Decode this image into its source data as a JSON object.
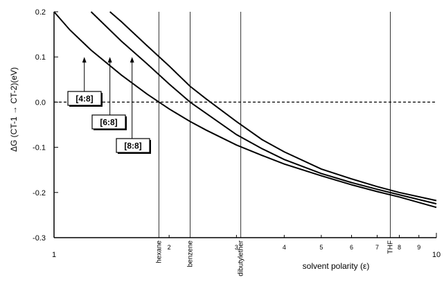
{
  "chart_data": {
    "type": "line",
    "xlabel": "solvent polarity (ε)",
    "ylabel": "ΔG (CT-1 → CT-2)(eV)",
    "xscale": "log",
    "xlim": [
      1,
      10
    ],
    "ylim": [
      -0.3,
      0.2
    ],
    "y_ticks": [
      "-0.3",
      "-0.2",
      "-0.1",
      "0.0",
      "0.1",
      "0.2"
    ],
    "x_major_ticks": [
      "1",
      "10"
    ],
    "x_minor_ticks": [
      "2",
      "3",
      "4",
      "5",
      "6",
      "7",
      "8",
      "9"
    ],
    "zero_line": "dashed",
    "reference_lines": [
      {
        "label": "hexane",
        "x": 1.88
      },
      {
        "label": "benzene",
        "x": 2.27
      },
      {
        "label": "dibutylether",
        "x": 3.08
      },
      {
        "label": "THF",
        "x": 7.58
      }
    ],
    "series": [
      {
        "name": "[4:8]",
        "x": [
          1.0,
          1.1,
          1.25,
          1.5,
          1.75,
          2.0,
          2.27,
          2.5,
          3.0,
          3.5,
          4.0,
          5.0,
          6.0,
          7.0,
          8.0,
          10.0
        ],
        "y": [
          0.2,
          0.16,
          0.115,
          0.06,
          0.018,
          -0.015,
          -0.043,
          -0.062,
          -0.095,
          -0.118,
          -0.137,
          -0.163,
          -0.183,
          -0.198,
          -0.21,
          -0.233
        ]
      },
      {
        "name": "[6:8]",
        "x": [
          1.25,
          1.5,
          1.75,
          2.0,
          2.27,
          2.5,
          3.0,
          3.5,
          4.0,
          5.0,
          6.0,
          7.0,
          8.0,
          10.0
        ],
        "y": [
          0.2,
          0.135,
          0.085,
          0.04,
          0.0,
          -0.025,
          -0.072,
          -0.103,
          -0.127,
          -0.158,
          -0.178,
          -0.193,
          -0.205,
          -0.225
        ]
      },
      {
        "name": "[8:8]",
        "x": [
          1.4,
          1.5,
          1.75,
          2.0,
          2.27,
          2.5,
          3.0,
          3.5,
          4.0,
          5.0,
          6.0,
          7.0,
          8.0,
          10.0
        ],
        "y": [
          0.2,
          0.178,
          0.125,
          0.08,
          0.035,
          0.007,
          -0.043,
          -0.083,
          -0.11,
          -0.148,
          -0.17,
          -0.187,
          -0.2,
          -0.218
        ]
      }
    ],
    "annotations": [
      {
        "label": "[4:8]",
        "x": 1.2,
        "y": 0.1
      },
      {
        "label": "[6:8]",
        "x": 1.4,
        "y": 0.1
      },
      {
        "label": "[8:8]",
        "x": 1.6,
        "y": 0.1
      }
    ]
  }
}
